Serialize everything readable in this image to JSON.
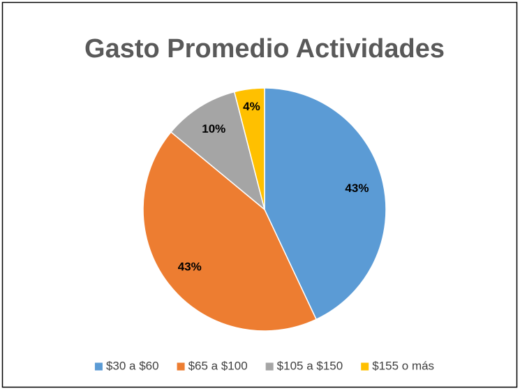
{
  "chart_data": {
    "type": "pie",
    "title": "Gasto Promedio Actividades",
    "categories": [
      "$30 a $60",
      "$65 a $100",
      "$105 a $150",
      "$155 o más"
    ],
    "values": [
      43,
      43,
      10,
      4
    ],
    "value_labels": [
      "43%",
      "43%",
      "10%",
      "4%"
    ],
    "colors": [
      "#5b9bd5",
      "#ed7d31",
      "#a5a5a5",
      "#ffc000"
    ],
    "legend": "bottom"
  }
}
